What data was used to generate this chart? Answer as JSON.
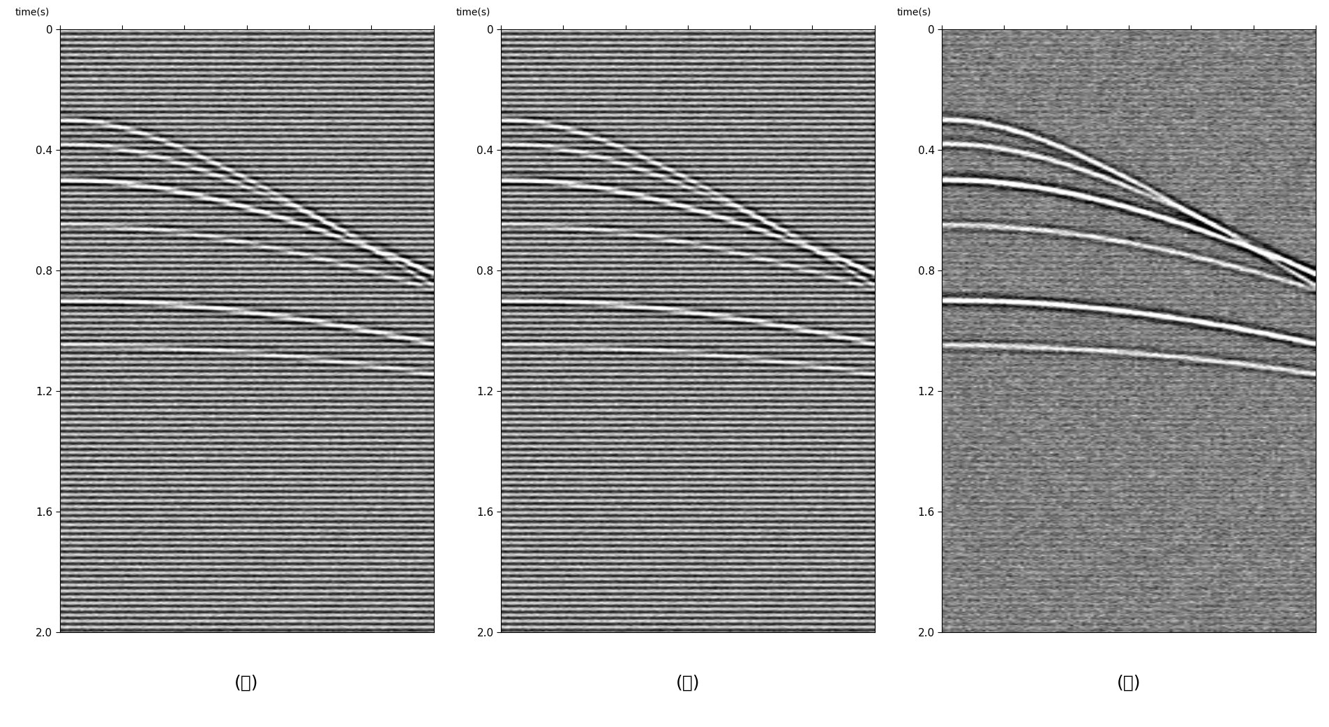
{
  "n_traces": 128,
  "n_samples": 500,
  "dt": 0.004,
  "t_max": 2.0,
  "ylim": [
    0,
    2.0
  ],
  "yticks": [
    0,
    0.4,
    0.8,
    1.2,
    1.6,
    2.0
  ],
  "ylabel": "time(s)",
  "background_color": "#ffffff",
  "panel_labels": [
    "(左)",
    "(中)",
    "(右)"
  ],
  "seed": 42,
  "mono_freq": 50,
  "f_dom": 25,
  "figsize": [
    19.05,
    10.43
  ],
  "dpi": 100,
  "cmap": "gray",
  "clip_pct": 98
}
